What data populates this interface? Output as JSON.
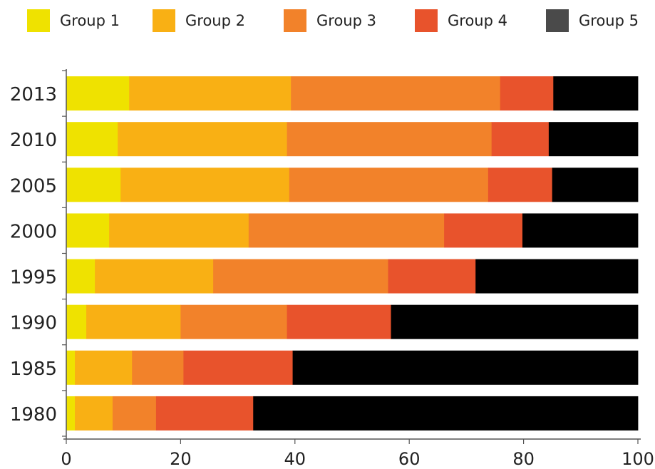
{
  "chart_data": {
    "type": "bar",
    "orientation": "horizontal",
    "stacked": true,
    "categories": [
      "2013",
      "2010",
      "2005",
      "2000",
      "1995",
      "1990",
      "1985",
      "1980"
    ],
    "series": [
      {
        "name": "Group 1",
        "color": "#efe200",
        "values": [
          11,
          9,
          9.5,
          7.5,
          5,
          3.5,
          1.5,
          1.5
        ]
      },
      {
        "name": "Group 2",
        "color": "#f9b014",
        "values": [
          28.3,
          29.6,
          29.5,
          24.4,
          20.7,
          16.5,
          10,
          6.6
        ]
      },
      {
        "name": "Group 3",
        "color": "#f2822a",
        "values": [
          36.6,
          35.8,
          34.8,
          34.2,
          30.6,
          18.6,
          9,
          7.6
        ]
      },
      {
        "name": "Group 4",
        "color": "#e8532c",
        "values": [
          9.3,
          10,
          11.2,
          13.7,
          15.3,
          18.2,
          19.1,
          17
        ]
      },
      {
        "name": "Group 5",
        "color": "#000000",
        "values": [
          14.8,
          15.6,
          15,
          20.2,
          28.4,
          43.2,
          60.4,
          67.3
        ]
      }
    ],
    "legend_swatch_color_group5": "#4a4a4a",
    "xlim": [
      0,
      100
    ],
    "xticks": [
      "0",
      "20",
      "40",
      "60",
      "80",
      "100"
    ],
    "xlabel": "",
    "ylabel": "",
    "title": "",
    "grid": false,
    "legend_position": "top"
  }
}
